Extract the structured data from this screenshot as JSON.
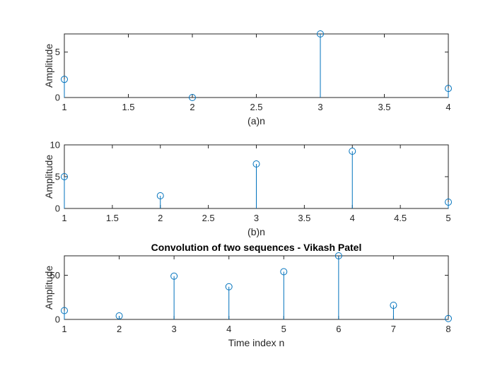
{
  "chart_data": [
    {
      "type": "stem",
      "title": "",
      "xlabel": "(a)n",
      "ylabel": "Amplitude",
      "x": [
        1,
        2,
        3,
        4
      ],
      "values": [
        2,
        0,
        7,
        1
      ],
      "xlim": [
        1,
        4
      ],
      "ylim": [
        0,
        7
      ],
      "xticks": [
        "1",
        "1.5",
        "2",
        "2.5",
        "3",
        "3.5",
        "4"
      ],
      "yticks": [
        "0",
        "5"
      ],
      "color": "#0072BD",
      "grid": false
    },
    {
      "type": "stem",
      "title": "",
      "xlabel": "(b)n",
      "ylabel": "Amplitude",
      "x": [
        1,
        2,
        3,
        4,
        5
      ],
      "values": [
        5,
        2,
        7,
        9,
        1
      ],
      "xlim": [
        1,
        5
      ],
      "ylim": [
        0,
        10
      ],
      "xticks": [
        "1",
        "1.5",
        "2",
        "2.5",
        "3",
        "3.5",
        "4",
        "4.5",
        "5"
      ],
      "yticks": [
        "0",
        "5",
        "10"
      ],
      "color": "#0072BD",
      "grid": false
    },
    {
      "type": "stem",
      "title": "Convolution of two sequences - Vikash Patel",
      "xlabel": "Time index n",
      "ylabel": "Amplitude",
      "x": [
        1,
        2,
        3,
        4,
        5,
        6,
        7,
        8
      ],
      "values": [
        10,
        4,
        49,
        37,
        54,
        72,
        16,
        1
      ],
      "xlim": [
        1,
        8
      ],
      "ylim": [
        0,
        72
      ],
      "xticks": [
        "1",
        "2",
        "3",
        "4",
        "5",
        "6",
        "7",
        "8"
      ],
      "yticks": [
        "0",
        "50"
      ],
      "color": "#0072BD",
      "grid": false
    }
  ]
}
